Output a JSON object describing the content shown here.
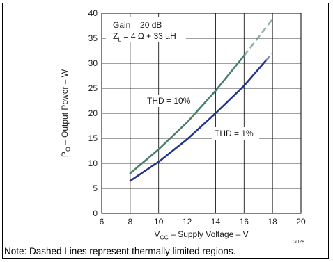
{
  "chart_data": {
    "type": "line",
    "xlabel": {
      "main": "V",
      "sub": "CC",
      "rest": " – Supply Voltage – V"
    },
    "ylabel": {
      "main": "P",
      "sub": "O",
      "rest": " – Output Power – W"
    },
    "xlim": [
      6,
      20
    ],
    "ylim": [
      0,
      40
    ],
    "xticks": [
      6,
      8,
      10,
      12,
      14,
      16,
      18,
      20
    ],
    "yticks": [
      0,
      5,
      10,
      15,
      20,
      25,
      30,
      35,
      40
    ],
    "grid": true,
    "annotations": {
      "gain": "Gain = 20 dB",
      "load": {
        "main": "Z",
        "sub": "L",
        "rest": " = 4 Ω + 33 µH"
      },
      "thd10": "THD = 10%",
      "thd1": "THD = 1%"
    },
    "figure_id": "G028",
    "note": "Note: Dashed Lines represent thermally limited regions.",
    "colors": {
      "thd10": "#4a7f68",
      "thd1": "#22348f"
    },
    "series": [
      {
        "name": "THD = 10%",
        "solid": {
          "x": [
            8,
            10,
            12,
            14,
            16
          ],
          "y": [
            8,
            12.8,
            18.2,
            24.5,
            31.5
          ]
        },
        "dashed": {
          "x": [
            16,
            18
          ],
          "y": [
            31.5,
            38.8
          ]
        }
      },
      {
        "name": "THD = 1%",
        "solid": {
          "x": [
            8,
            10,
            12,
            14,
            16,
            17.5
          ],
          "y": [
            6.5,
            10.3,
            14.8,
            20.0,
            25.5,
            30.4
          ]
        },
        "dashed": {
          "x": [
            17.5,
            18
          ],
          "y": [
            30.4,
            32.0
          ]
        }
      }
    ]
  }
}
